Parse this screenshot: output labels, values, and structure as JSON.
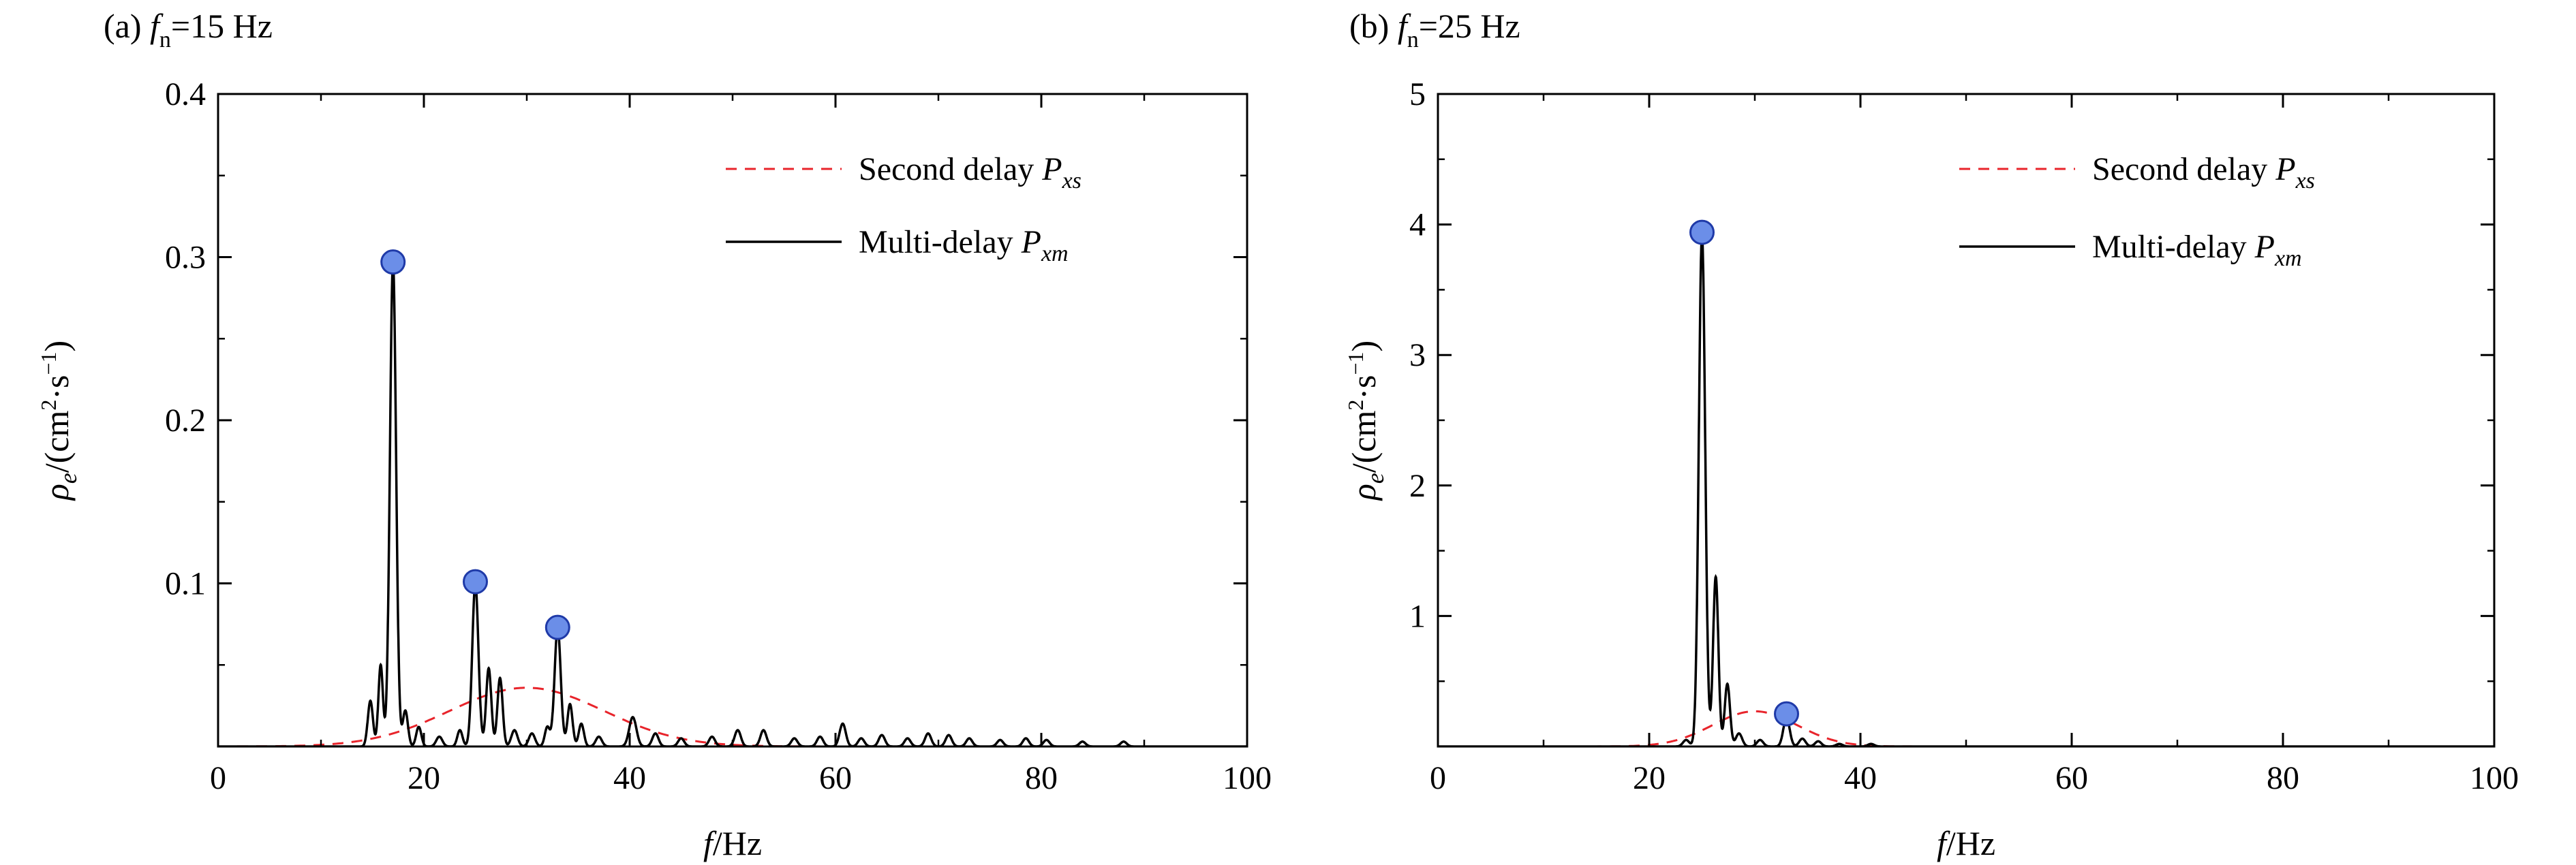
{
  "chart_data": [
    {
      "type": "line",
      "panel_tag": "(a)",
      "title": "f_n=15 Hz",
      "title_parts": {
        "tag": "(a)",
        "sym": "f",
        "sub": "n",
        "rest": "=15 Hz"
      },
      "xlabel": "f/Hz",
      "xlabel_parts": {
        "sym": "f",
        "rest": "/Hz"
      },
      "ylabel": "ρe/(cm²·s⁻¹)",
      "xlim": [
        0,
        100
      ],
      "ylim": [
        0,
        0.4
      ],
      "x_ticks": [
        "0",
        "20",
        "40",
        "60",
        "80",
        "100"
      ],
      "y_ticks": [
        "0.1",
        "0.2",
        "0.3",
        "0.4"
      ],
      "y_tick_values": [
        0.1,
        0.2,
        0.3,
        0.4
      ],
      "legend_position": "top-right",
      "series": [
        {
          "name": "Second delay Pxs",
          "legend_parts": {
            "text": "Second delay ",
            "sym": "P",
            "sub": "xs"
          },
          "style": "dashed",
          "color": "#e8242b",
          "peaks": [
            {
              "center": 30,
              "height": 0.036,
              "width": 7.5
            }
          ]
        },
        {
          "name": "Multi-delay Pxm",
          "legend_parts": {
            "text": "Multi-delay ",
            "sym": "P",
            "sub": "xm"
          },
          "style": "solid",
          "color": "#000000",
          "peaks": [
            {
              "center": 14.8,
              "height": 0.028,
              "width": 0.25
            },
            {
              "center": 15.8,
              "height": 0.05,
              "width": 0.22
            },
            {
              "center": 17.0,
              "height": 0.297,
              "width": 0.3
            },
            {
              "center": 18.2,
              "height": 0.022,
              "width": 0.25
            },
            {
              "center": 19.5,
              "height": 0.012,
              "width": 0.25
            },
            {
              "center": 21.5,
              "height": 0.006,
              "width": 0.3
            },
            {
              "center": 23.5,
              "height": 0.01,
              "width": 0.25
            },
            {
              "center": 25.0,
              "height": 0.1,
              "width": 0.3
            },
            {
              "center": 26.3,
              "height": 0.048,
              "width": 0.25
            },
            {
              "center": 27.4,
              "height": 0.042,
              "width": 0.25
            },
            {
              "center": 28.8,
              "height": 0.01,
              "width": 0.3
            },
            {
              "center": 30.5,
              "height": 0.008,
              "width": 0.3
            },
            {
              "center": 32.0,
              "height": 0.012,
              "width": 0.25
            },
            {
              "center": 33.0,
              "height": 0.073,
              "width": 0.3
            },
            {
              "center": 34.2,
              "height": 0.026,
              "width": 0.25
            },
            {
              "center": 35.3,
              "height": 0.014,
              "width": 0.25
            },
            {
              "center": 37.0,
              "height": 0.006,
              "width": 0.3
            },
            {
              "center": 40.3,
              "height": 0.018,
              "width": 0.35
            },
            {
              "center": 42.5,
              "height": 0.008,
              "width": 0.3
            },
            {
              "center": 45.0,
              "height": 0.005,
              "width": 0.3
            },
            {
              "center": 48.0,
              "height": 0.006,
              "width": 0.3
            },
            {
              "center": 50.5,
              "height": 0.01,
              "width": 0.3
            },
            {
              "center": 53.0,
              "height": 0.01,
              "width": 0.3
            },
            {
              "center": 56.0,
              "height": 0.005,
              "width": 0.3
            },
            {
              "center": 58.5,
              "height": 0.006,
              "width": 0.3
            },
            {
              "center": 60.7,
              "height": 0.014,
              "width": 0.3
            },
            {
              "center": 62.5,
              "height": 0.005,
              "width": 0.3
            },
            {
              "center": 64.5,
              "height": 0.007,
              "width": 0.3
            },
            {
              "center": 67.0,
              "height": 0.005,
              "width": 0.3
            },
            {
              "center": 69.0,
              "height": 0.008,
              "width": 0.3
            },
            {
              "center": 71.0,
              "height": 0.007,
              "width": 0.3
            },
            {
              "center": 73.0,
              "height": 0.005,
              "width": 0.3
            },
            {
              "center": 76.0,
              "height": 0.004,
              "width": 0.3
            },
            {
              "center": 78.5,
              "height": 0.005,
              "width": 0.3
            },
            {
              "center": 80.5,
              "height": 0.004,
              "width": 0.3
            },
            {
              "center": 84.0,
              "height": 0.003,
              "width": 0.3
            },
            {
              "center": 88.0,
              "height": 0.003,
              "width": 0.3
            }
          ]
        }
      ],
      "markers": [
        {
          "x": 17.0,
          "y": 0.297
        },
        {
          "x": 25.0,
          "y": 0.101
        },
        {
          "x": 33.0,
          "y": 0.073
        }
      ]
    },
    {
      "type": "line",
      "panel_tag": "(b)",
      "title": "f_n=25 Hz",
      "title_parts": {
        "tag": "(b)",
        "sym": "f",
        "sub": "n",
        "rest": "=25 Hz"
      },
      "xlabel": "f/Hz",
      "xlabel_parts": {
        "sym": "f",
        "rest": "/Hz"
      },
      "ylabel": "ρe/(cm²·s⁻¹)",
      "xlim": [
        0,
        100
      ],
      "ylim": [
        0,
        5
      ],
      "x_ticks": [
        "0",
        "20",
        "40",
        "60",
        "80",
        "100"
      ],
      "y_ticks": [
        "1",
        "2",
        "3",
        "4",
        "5"
      ],
      "y_tick_values": [
        1,
        2,
        3,
        4,
        5
      ],
      "legend_position": "top-right",
      "series": [
        {
          "name": "Second delay Pxs",
          "legend_parts": {
            "text": "Second delay ",
            "sym": "P",
            "sub": "xs"
          },
          "style": "dashed",
          "color": "#e8242b",
          "peaks": [
            {
              "center": 30,
              "height": 0.27,
              "width": 4.0
            }
          ]
        },
        {
          "name": "Multi-delay Pxm",
          "legend_parts": {
            "text": "Multi-delay ",
            "sym": "P",
            "sub": "xm"
          },
          "style": "solid",
          "color": "#000000",
          "peaks": [
            {
              "center": 23.5,
              "height": 0.05,
              "width": 0.3
            },
            {
              "center": 25.0,
              "height": 3.93,
              "width": 0.3
            },
            {
              "center": 26.3,
              "height": 1.3,
              "width": 0.25
            },
            {
              "center": 27.4,
              "height": 0.48,
              "width": 0.25
            },
            {
              "center": 28.5,
              "height": 0.1,
              "width": 0.3
            },
            {
              "center": 30.5,
              "height": 0.05,
              "width": 0.3
            },
            {
              "center": 33.0,
              "height": 0.22,
              "width": 0.3
            },
            {
              "center": 34.5,
              "height": 0.06,
              "width": 0.3
            },
            {
              "center": 36.0,
              "height": 0.04,
              "width": 0.3
            },
            {
              "center": 38.0,
              "height": 0.02,
              "width": 0.3
            },
            {
              "center": 41.0,
              "height": 0.02,
              "width": 0.3
            }
          ]
        }
      ],
      "markers": [
        {
          "x": 25.0,
          "y": 3.94
        },
        {
          "x": 33.0,
          "y": 0.25
        }
      ]
    }
  ]
}
